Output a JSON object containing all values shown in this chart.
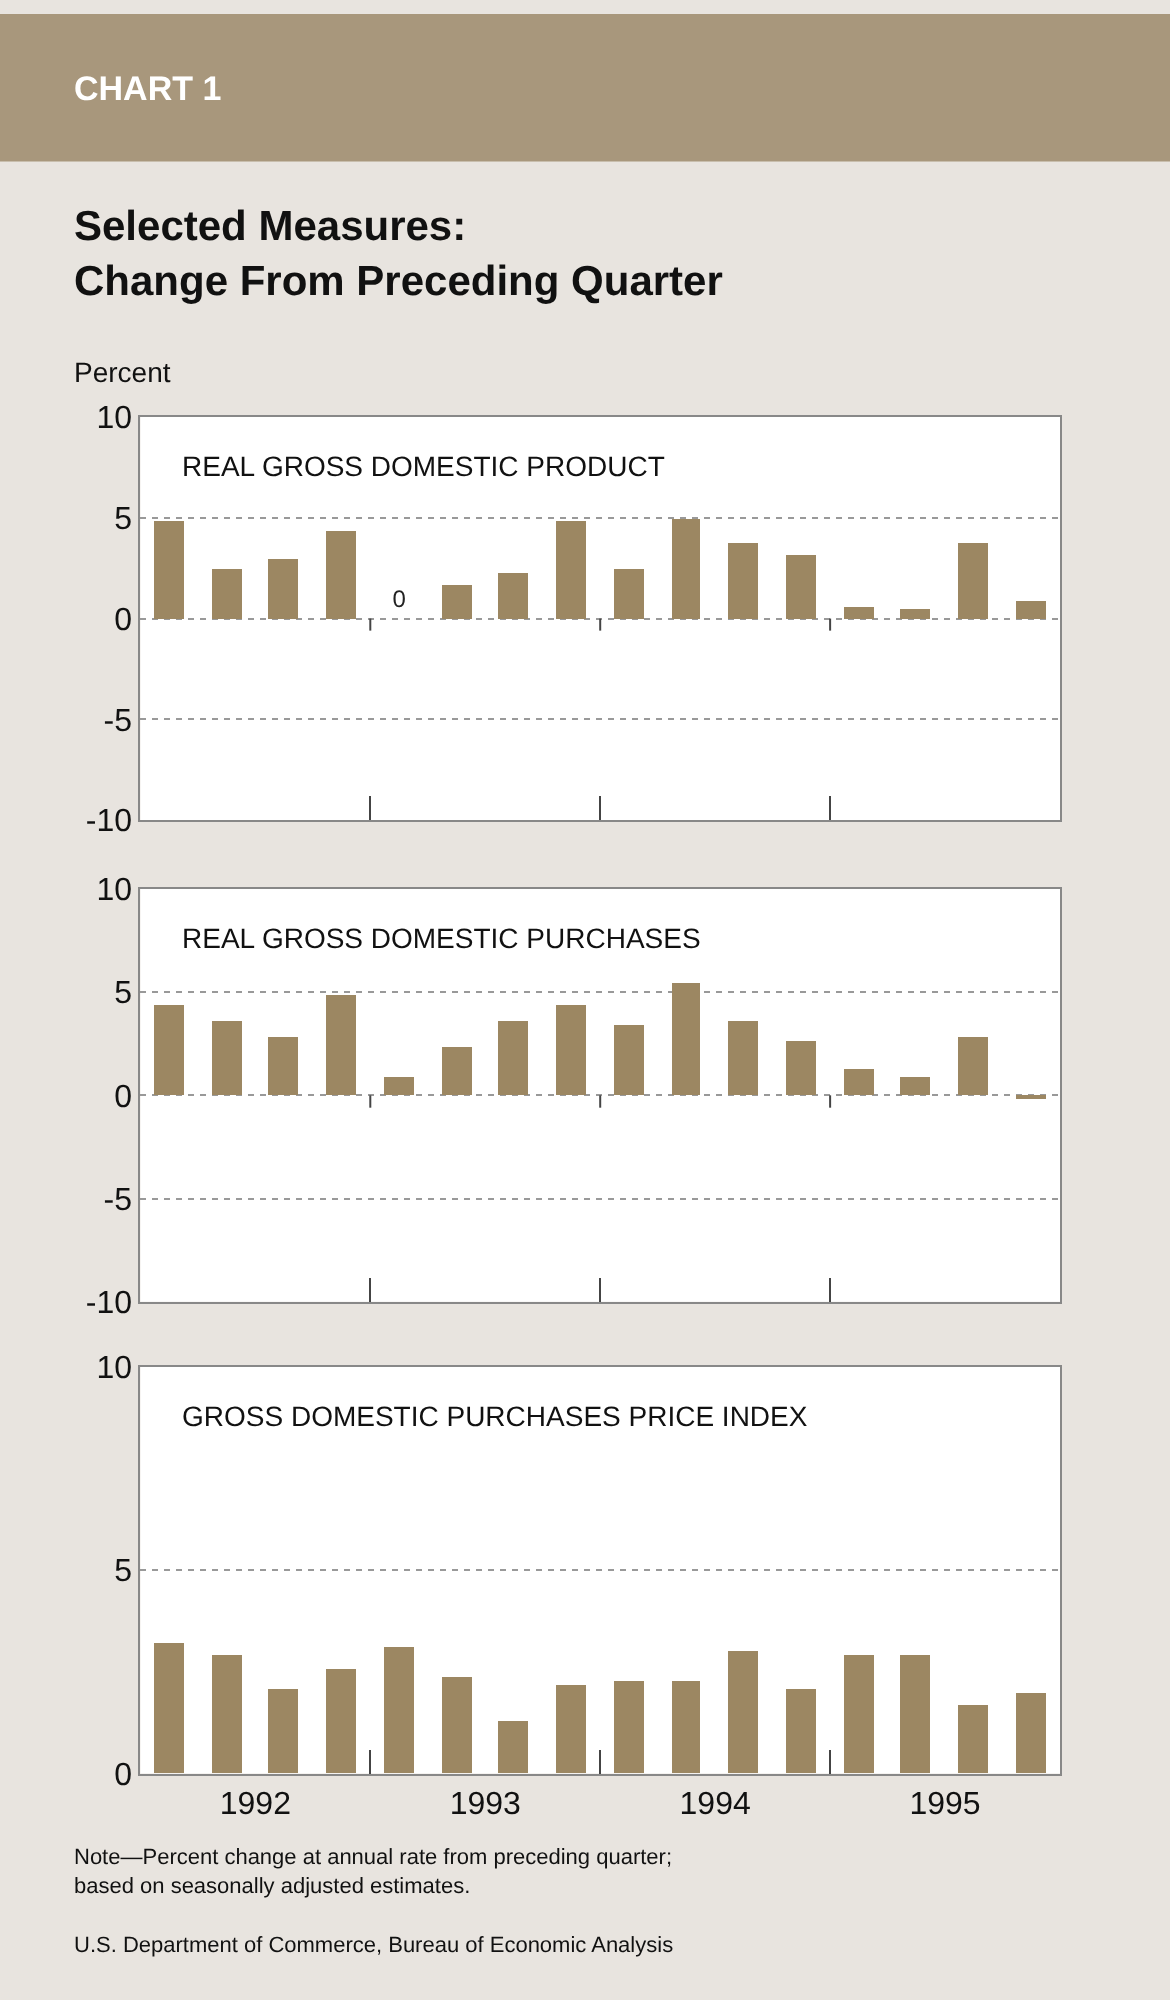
{
  "chart_data": [
    {
      "type": "bar",
      "title": "REAL GROSS DOMESTIC PRODUCT",
      "ylabel": "Percent",
      "annotations": [
        "CHART 1",
        "Selected Measures:\nChange From Preceding Quarter"
      ],
      "x": [
        1992.125,
        1992.375,
        1992.625,
        1992.875,
        1993.125,
        1993.375,
        1993.625,
        1993.875,
        1994.125,
        1994.375,
        1994.625,
        1994.875,
        1995.125,
        1995.375,
        1995.625,
        1995.875
      ],
      "values": [
        4.8,
        2.5,
        3.0,
        4.3,
        0,
        1.7,
        2.3,
        4.8,
        2.5,
        4.9,
        3.7,
        3.2,
        0.6,
        0.5,
        3.7,
        0.9
      ],
      "value_labels": [
        null,
        null,
        null,
        null,
        "0",
        null,
        null,
        null,
        null,
        null,
        null,
        null,
        null,
        null,
        null,
        null
      ],
      "color": "#9c8762",
      "xlim": [
        1992,
        1996
      ],
      "xticks": [
        {
          "value": 1993,
          "label": null
        },
        {
          "value": 1994,
          "label": null
        },
        {
          "value": 1995,
          "label": null
        }
      ],
      "ylim": [
        -10,
        10
      ],
      "yticks": [
        -10,
        -5,
        0,
        5,
        10
      ],
      "grid": "y",
      "tick_labels": "y"
    },
    {
      "type": "bar",
      "title": "REAL GROSS DOMESTIC PURCHASES",
      "x": [
        1992.125,
        1992.375,
        1992.625,
        1992.875,
        1993.125,
        1993.375,
        1993.625,
        1993.875,
        1994.125,
        1994.375,
        1994.625,
        1994.875,
        1995.125,
        1995.375,
        1995.625,
        1995.875
      ],
      "values": [
        4.4,
        3.6,
        2.8,
        4.9,
        0.9,
        2.3,
        3.6,
        4.4,
        3.4,
        5.4,
        3.6,
        2.6,
        1.3,
        0.9,
        2.8,
        -0.1
      ],
      "color": "#9c8762",
      "xlim": [
        1992,
        1996
      ],
      "xticks": [
        {
          "value": 1993,
          "label": null
        },
        {
          "value": 1994,
          "label": null
        },
        {
          "value": 1995,
          "label": null
        }
      ],
      "ylim": [
        -10,
        10
      ],
      "yticks": [
        -10,
        -5,
        0,
        5,
        10
      ],
      "grid": "y",
      "tick_labels": "y"
    },
    {
      "type": "bar",
      "title": "GROSS DOMESTIC PURCHASES PRICE INDEX",
      "annotations": [
        "Note—Percent change at annual rate from preceding quarter;\nbased on seasonally adjusted estimates.",
        "U.S. Department of Commerce, Bureau of Economic Analysis"
      ],
      "x": [
        1992.125,
        1992.375,
        1992.625,
        1992.875,
        1993.125,
        1993.375,
        1993.625,
        1993.875,
        1994.125,
        1994.375,
        1994.625,
        1994.875,
        1995.125,
        1995.375,
        1995.625,
        1995.875
      ],
      "values": [
        3.2,
        2.9,
        2.1,
        2.6,
        3.1,
        2.4,
        1.3,
        2.2,
        2.3,
        2.3,
        3.0,
        2.1,
        2.9,
        2.9,
        1.7,
        2.0
      ],
      "color": "#9c8762",
      "xlim": [
        1992,
        1996
      ],
      "xticks": [
        {
          "value": 1992.5,
          "label": "1992"
        },
        {
          "value": 1993,
          "label": null
        },
        {
          "value": 1993.5,
          "label": "1993"
        },
        {
          "value": 1994,
          "label": null
        },
        {
          "value": 1994.5,
          "label": "1994"
        },
        {
          "value": 1995,
          "label": null
        },
        {
          "value": 1995.5,
          "label": "1995"
        }
      ],
      "ylim": [
        0,
        10
      ],
      "yticks": [
        0,
        5,
        10
      ],
      "grid": "y"
    }
  ]
}
